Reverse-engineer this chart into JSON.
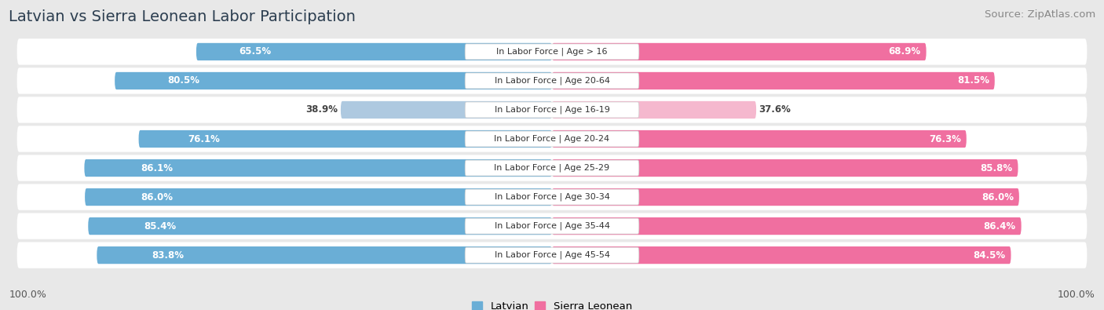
{
  "title": "Latvian vs Sierra Leonean Labor Participation",
  "source": "Source: ZipAtlas.com",
  "categories": [
    "In Labor Force | Age > 16",
    "In Labor Force | Age 20-64",
    "In Labor Force | Age 16-19",
    "In Labor Force | Age 20-24",
    "In Labor Force | Age 25-29",
    "In Labor Force | Age 30-34",
    "In Labor Force | Age 35-44",
    "In Labor Force | Age 45-54"
  ],
  "latvian_values": [
    65.5,
    80.5,
    38.9,
    76.1,
    86.1,
    86.0,
    85.4,
    83.8
  ],
  "sierra_values": [
    68.9,
    81.5,
    37.6,
    76.3,
    85.8,
    86.0,
    86.4,
    84.5
  ],
  "latvian_color": "#6aaed6",
  "latvian_light_color": "#aec9e0",
  "sierra_color": "#f06fa0",
  "sierra_light_color": "#f5b8ce",
  "row_bg_color": "#ffffff",
  "fig_bg_color": "#e8e8e8",
  "max_value": 100.0,
  "legend_latvian": "Latvian",
  "legend_sierra": "Sierra Leonean",
  "bottom_left_label": "100.0%",
  "bottom_right_label": "100.0%",
  "title_fontsize": 14,
  "source_fontsize": 9.5,
  "bar_label_fontsize": 8.5,
  "category_fontsize": 8,
  "legend_fontsize": 9.5
}
